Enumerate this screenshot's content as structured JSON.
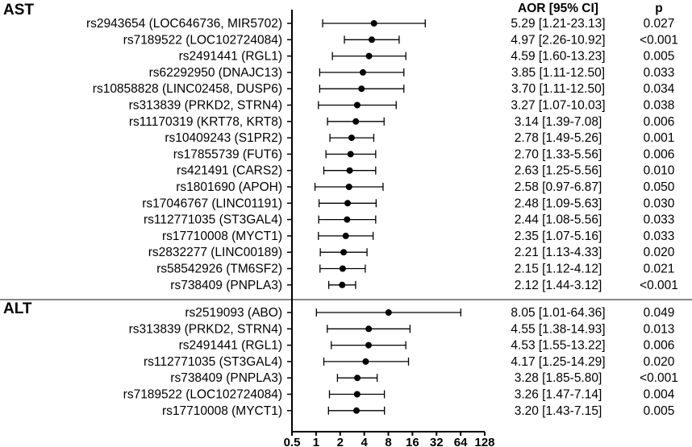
{
  "chart_data": {
    "type": "forest",
    "x_scale": "log2",
    "xlim": [
      0.5,
      128
    ],
    "x_ticks": [
      "0.5",
      "1",
      "2",
      "4",
      "8",
      "16",
      "32",
      "64",
      "128"
    ],
    "header": {
      "estimate": "AOR [95% CI]",
      "p": "p"
    },
    "sections": [
      {
        "name": "AST",
        "rows": [
          {
            "label": "rs2943654 (LOC646736, MIR5702)",
            "aor": 5.29,
            "lo": 1.21,
            "hi": 23.13,
            "text": "5.29 [1.21-23.13]",
            "p": "0.027"
          },
          {
            "label": "rs7189522 (LOC102724084)",
            "aor": 4.97,
            "lo": 2.26,
            "hi": 10.92,
            "text": "4.97 [2.26-10.92]",
            "p": "<0.001"
          },
          {
            "label": "rs2491441 (RGL1)",
            "aor": 4.59,
            "lo": 1.6,
            "hi": 13.23,
            "text": "4.59 [1.60-13.23]",
            "p": "0.005"
          },
          {
            "label": "rs62292950 (DNAJC13)",
            "aor": 3.85,
            "lo": 1.11,
            "hi": 12.5,
            "text": "3.85 [1.11-12.50]",
            "p": "0.033"
          },
          {
            "label": "rs10858828 (LINC02458, DUSP6)",
            "aor": 3.7,
            "lo": 1.11,
            "hi": 12.5,
            "text": "3.70 [1.11-12.50]",
            "p": "0.034"
          },
          {
            "label": "rs313839 (PRKD2, STRN4)",
            "aor": 3.27,
            "lo": 1.07,
            "hi": 10.03,
            "text": "3.27 [1.07-10.03]",
            "p": "0.038"
          },
          {
            "label": "rs11170319 (KRT78, KRT8)",
            "aor": 3.14,
            "lo": 1.39,
            "hi": 7.08,
            "text": "3.14 [1.39-7.08]",
            "p": "0.006"
          },
          {
            "label": "rs10409243 (S1PR2)",
            "aor": 2.78,
            "lo": 1.49,
            "hi": 5.26,
            "text": "2.78 [1.49-5.26]",
            "p": "0.001"
          },
          {
            "label": "rs17855739 (FUT6)",
            "aor": 2.7,
            "lo": 1.33,
            "hi": 5.56,
            "text": "2.70 [1.33-5.56]",
            "p": "0.006"
          },
          {
            "label": "rs421491 (CARS2)",
            "aor": 2.63,
            "lo": 1.25,
            "hi": 5.56,
            "text": "2.63 [1.25-5.56]",
            "p": "0.010"
          },
          {
            "label": "rs1801690 (APOH)",
            "aor": 2.58,
            "lo": 0.97,
            "hi": 6.87,
            "text": "2.58 [0.97-6.87]",
            "p": "0.050"
          },
          {
            "label": "rs17046767 (LINC01191)",
            "aor": 2.48,
            "lo": 1.09,
            "hi": 5.63,
            "text": "2.48 [1.09-5.63]",
            "p": "0.030"
          },
          {
            "label": "rs112771035 (ST3GAL4)",
            "aor": 2.44,
            "lo": 1.08,
            "hi": 5.56,
            "text": "2.44 [1.08-5.56]",
            "p": "0.033"
          },
          {
            "label": "rs17710008 (MYCT1)",
            "aor": 2.35,
            "lo": 1.07,
            "hi": 5.16,
            "text": "2.35 [1.07-5.16]",
            "p": "0.033"
          },
          {
            "label": "rs2832277 (LINC00189)",
            "aor": 2.21,
            "lo": 1.13,
            "hi": 4.33,
            "text": "2.21 [1.13-4.33]",
            "p": "0.020"
          },
          {
            "label": "rs58542926 (TM6SF2)",
            "aor": 2.15,
            "lo": 1.12,
            "hi": 4.12,
            "text": "2.15 [1.12-4.12]",
            "p": "0.021"
          },
          {
            "label": "rs738409 (PNPLA3)",
            "aor": 2.12,
            "lo": 1.44,
            "hi": 3.12,
            "text": "2.12 [1.44-3.12]",
            "p": "<0.001"
          }
        ]
      },
      {
        "name": "ALT",
        "rows": [
          {
            "label": "rs2519093 (ABO)",
            "aor": 8.05,
            "lo": 1.01,
            "hi": 64.36,
            "text": "8.05 [1.01-64.36]",
            "p": "0.049"
          },
          {
            "label": "rs313839 (PRKD2, STRN4)",
            "aor": 4.55,
            "lo": 1.38,
            "hi": 14.93,
            "text": "4.55 [1.38-14.93]",
            "p": "0.013"
          },
          {
            "label": "rs2491441 (RGL1)",
            "aor": 4.53,
            "lo": 1.55,
            "hi": 13.22,
            "text": "4.53 [1.55-13.22]",
            "p": "0.006"
          },
          {
            "label": "rs112771035 (ST3GAL4)",
            "aor": 4.17,
            "lo": 1.25,
            "hi": 14.29,
            "text": "4.17 [1.25-14.29]",
            "p": "0.020"
          },
          {
            "label": "rs738409 (PNPLA3)",
            "aor": 3.28,
            "lo": 1.85,
            "hi": 5.8,
            "text": "3.28 [1.85-5.80]",
            "p": "<0.001"
          },
          {
            "label": "rs7189522 (LOC102724084)",
            "aor": 3.26,
            "lo": 1.47,
            "hi": 7.14,
            "text": "3.26 [1.47-7.14]",
            "p": "0.004"
          },
          {
            "label": "rs17710008 (MYCT1)",
            "aor": 3.2,
            "lo": 1.43,
            "hi": 7.15,
            "text": "3.20 [1.43-7.15]",
            "p": "0.005"
          }
        ]
      }
    ]
  }
}
